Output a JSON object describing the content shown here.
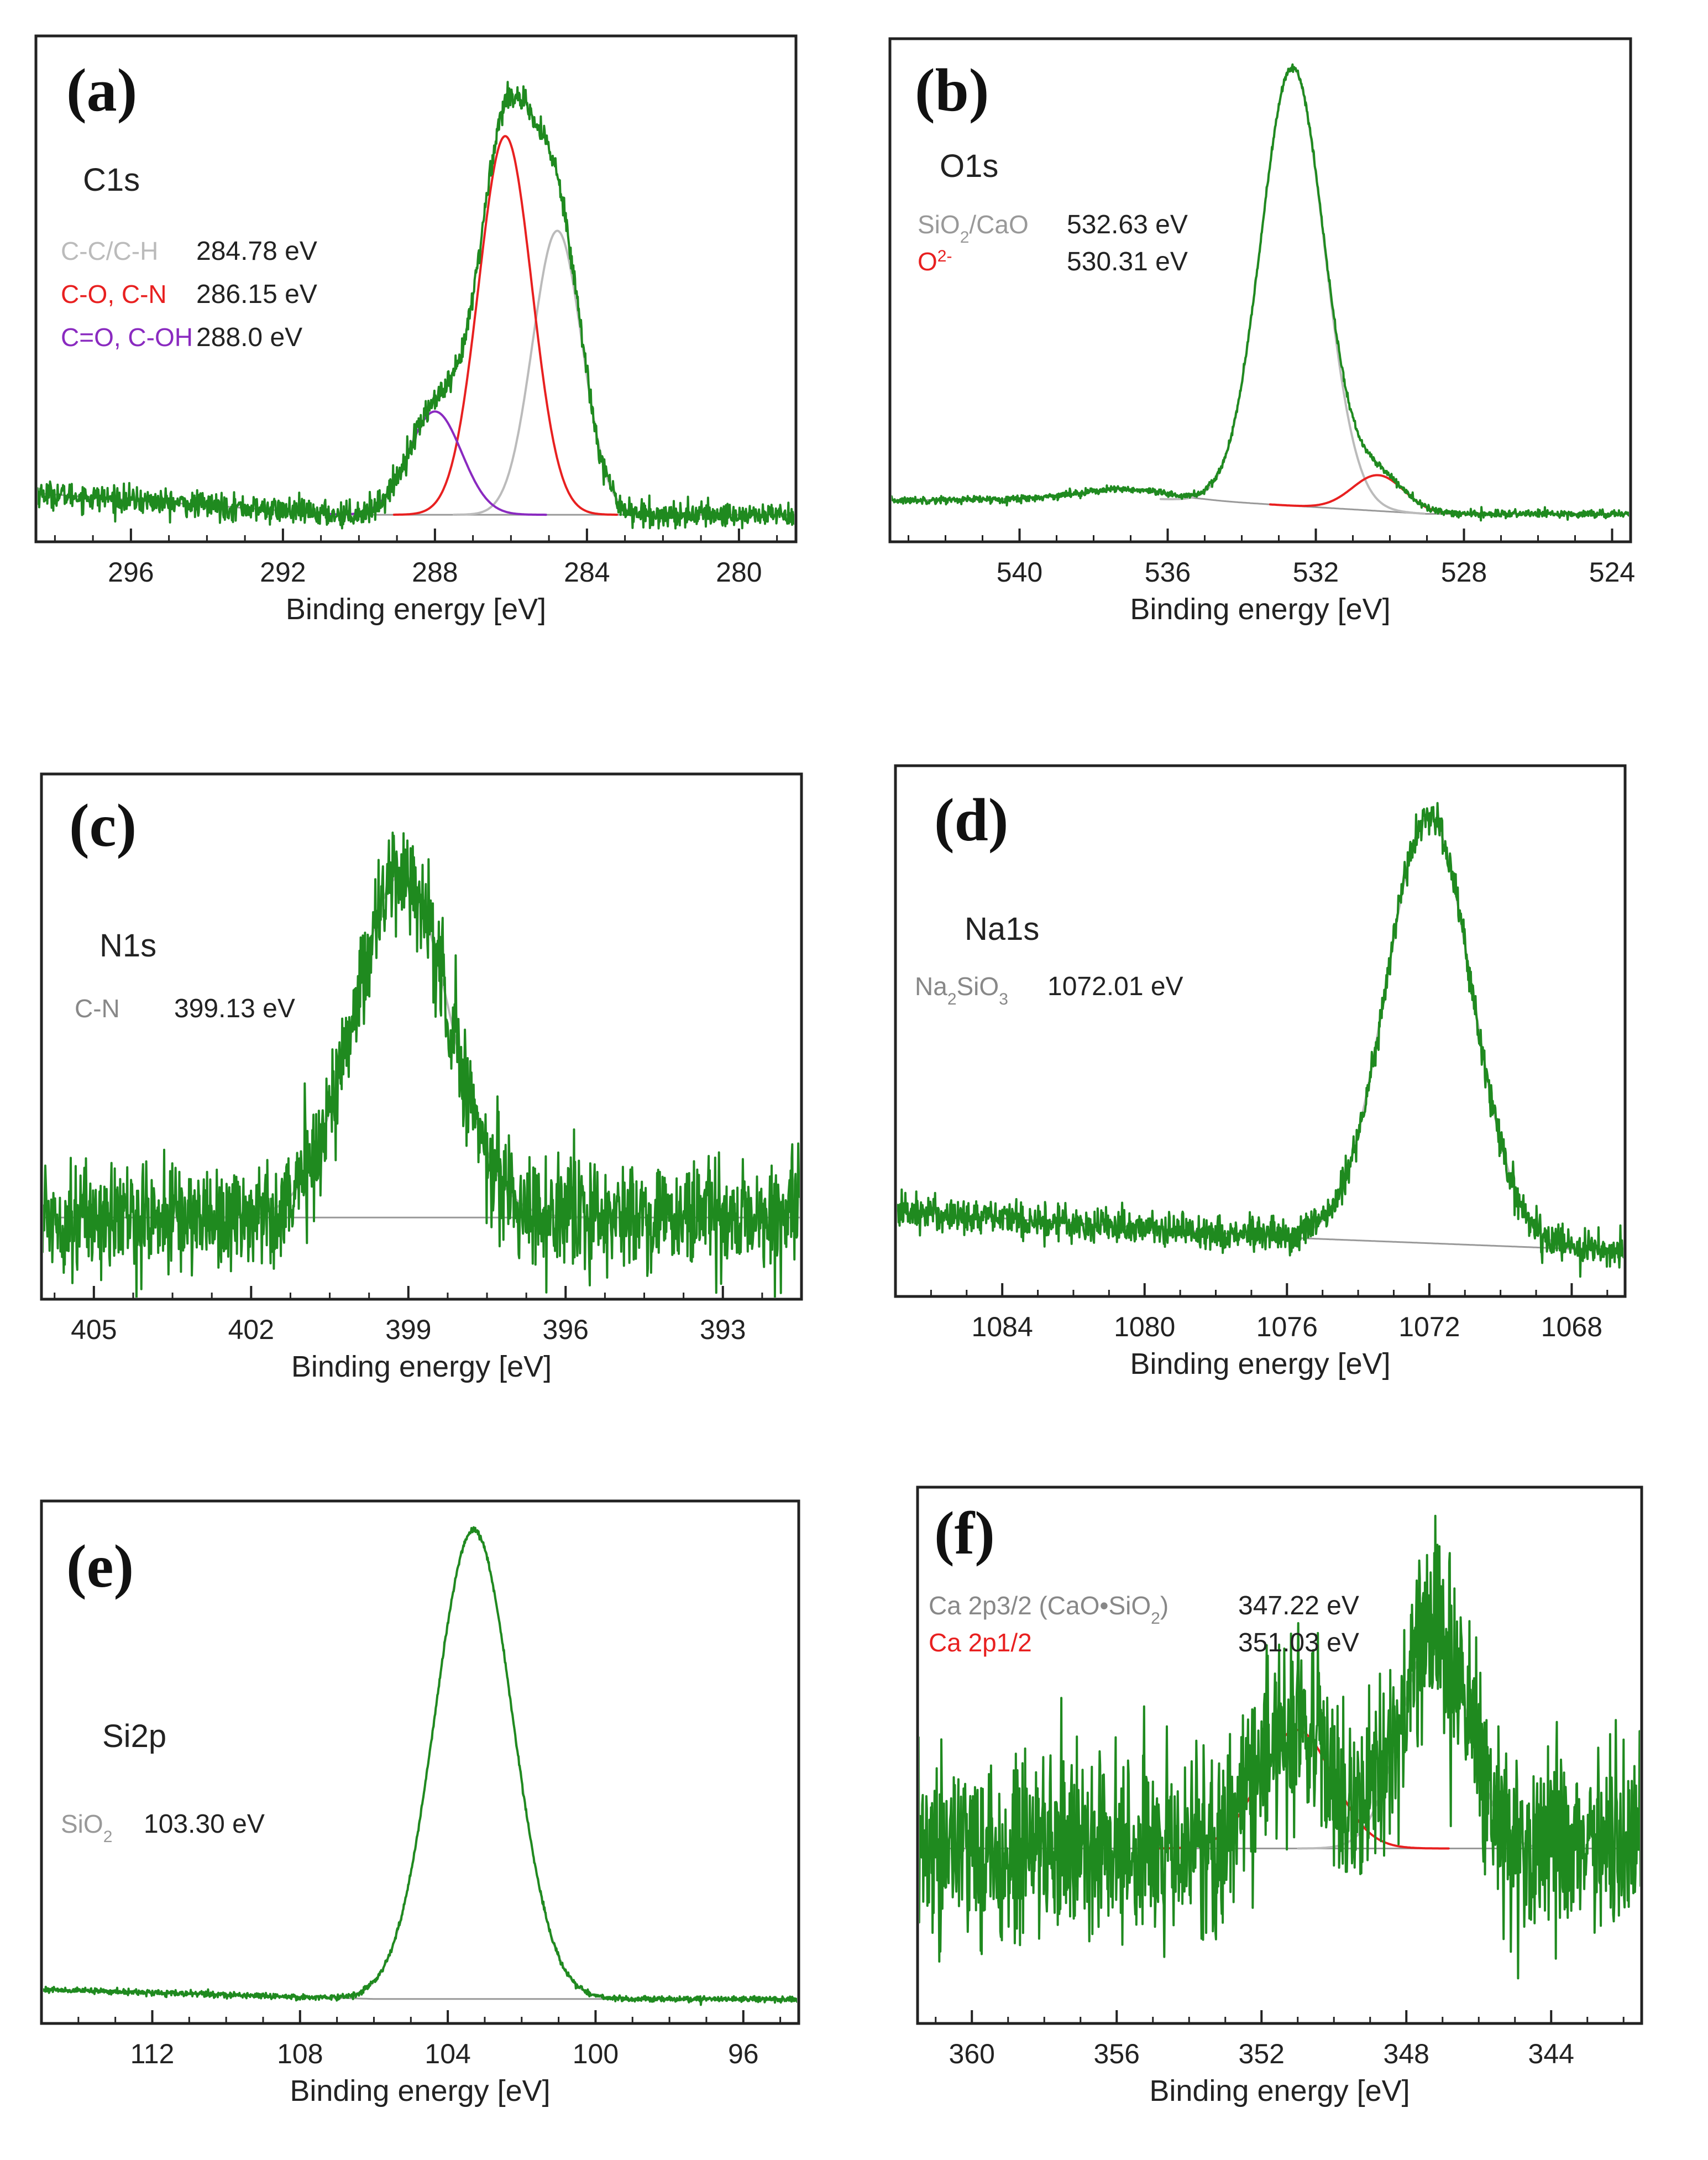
{
  "chart_data": [
    {
      "panel": "(a)",
      "type": "line",
      "core_level": "C1s",
      "xlabel": "Binding energy [eV]",
      "xlim": [
        298.5,
        278.5
      ],
      "xticks": [
        296,
        292,
        288,
        284,
        280
      ],
      "xtick_labels": [
        "296",
        "292",
        "288",
        "284",
        "280"
      ],
      "components": [
        {
          "name": "C-C/C-H",
          "value": "284.78 eV",
          "name_color": "#bbbbbb",
          "center": 284.78,
          "amp": 0.66,
          "sigma": 0.65
        },
        {
          "name": "C-O, C-N",
          "value": "286.15 eV",
          "name_color": "#e82020",
          "center": 286.15,
          "amp": 0.88,
          "sigma": 0.7
        },
        {
          "name": "C=O, C-OH",
          "value": "288.0 eV",
          "name_color": "#8a2ac0",
          "center": 288.0,
          "amp": 0.24,
          "sigma": 0.7
        }
      ],
      "fit_colors": [
        "#bbbbbb",
        "#e82020",
        "#8a2ac0"
      ],
      "baseline": [
        [
          298.5,
          0.05
        ],
        [
          290.5,
          0.0
        ],
        [
          279.0,
          0.0
        ]
      ],
      "noise": 0.015,
      "ylim": [
        -0.05,
        1.1
      ]
    },
    {
      "panel": "(b)",
      "type": "line",
      "core_level": "O1s",
      "xlabel": "Binding energy [eV]",
      "xlim": [
        543.5,
        523.5
      ],
      "xticks": [
        540,
        536,
        532,
        528,
        524
      ],
      "xtick_labels": [
        "540",
        "536",
        "532",
        "528",
        "524"
      ],
      "components": [
        {
          "name_html": "SiO<tspan baseline-shift=\"sub\" font-size=\"30\">2</tspan>/CaO",
          "name": "SiO2/CaO",
          "value": "532.63 eV",
          "name_color": "#999999",
          "center": 532.63,
          "amp": 0.98,
          "sigma": 0.85
        },
        {
          "name_html": "O<tspan baseline-shift=\"super\" font-size=\"30\">2-</tspan>",
          "name": "O2-",
          "value": "530.31 eV",
          "name_color": "#e82020",
          "center": 530.31,
          "amp": 0.08,
          "sigma": 0.7
        }
      ],
      "fit_colors": [
        "#bbbbbb",
        "#e82020"
      ],
      "baseline": [
        [
          543.5,
          0.03
        ],
        [
          537.0,
          0.035
        ],
        [
          535.0,
          0.03
        ],
        [
          529.0,
          0.0
        ],
        [
          523.5,
          0.0
        ]
      ],
      "bump": {
        "center": 537.3,
        "amp": 0.02,
        "sigma": 1.2
      },
      "noise": 0.004,
      "ylim": [
        -0.05,
        1.05
      ]
    },
    {
      "panel": "(c)",
      "type": "line",
      "core_level": "N1s",
      "xlabel": "Binding energy [eV]",
      "xlim": [
        406.0,
        391.5
      ],
      "xticks": [
        405,
        402,
        399,
        396,
        393
      ],
      "xtick_labels": [
        "405",
        "402",
        "399",
        "396",
        "393"
      ],
      "components": [
        {
          "name": "C-N",
          "value": "399.13 eV",
          "name_color": "#888888",
          "center": 399.13,
          "amp": 0.9,
          "sigma": 0.9
        }
      ],
      "fit_colors": [
        "#bbbbbb"
      ],
      "baseline": [
        [
          406.0,
          0.0
        ],
        [
          391.5,
          0.0
        ]
      ],
      "noise": 0.07,
      "ylim": [
        -0.2,
        1.15
      ]
    },
    {
      "panel": "(d)",
      "type": "line",
      "core_level": "Na1s",
      "xlabel": "Binding energy [eV]",
      "xlim": [
        1087.0,
        1066.5
      ],
      "xticks": [
        1084,
        1080,
        1076,
        1072,
        1068
      ],
      "xtick_labels": [
        "1084",
        "1080",
        "1076",
        "1072",
        "1068"
      ],
      "components": [
        {
          "name_html": "Na<tspan baseline-shift=\"sub\" font-size=\"30\">2</tspan>SiO<tspan baseline-shift=\"sub\" font-size=\"30\">3</tspan>",
          "name": "Na2SiO3",
          "value": "1072.01 eV",
          "name_color": "#888888",
          "center": 1072.01,
          "amp": 0.96,
          "sigma": 1.2
        }
      ],
      "fit_colors": [
        "#bbbbbb"
      ],
      "baseline": [
        [
          1087.0,
          0.06
        ],
        [
          1076.0,
          0.0
        ],
        [
          1066.5,
          -0.03
        ]
      ],
      "noise": 0.02,
      "ylim": [
        -0.12,
        1.05
      ]
    },
    {
      "panel": "(e)",
      "type": "line",
      "core_level": "Si2p",
      "xlabel": "Binding energy [eV]",
      "xlim": [
        115.0,
        94.5
      ],
      "xticks": [
        112,
        108,
        104,
        100,
        96
      ],
      "xtick_labels": [
        "112",
        "108",
        "104",
        "100",
        "96"
      ],
      "components": [
        {
          "name_html": "SiO<tspan baseline-shift=\"sub\" font-size=\"30\">2</tspan>",
          "name": "SiO2",
          "value": "103.30 eV",
          "name_color": "#999999",
          "center": 103.3,
          "amp": 0.99,
          "sigma": 1.05
        }
      ],
      "fit_colors": [
        "#bbbbbb"
      ],
      "baseline": [
        [
          115.0,
          0.02
        ],
        [
          106.0,
          0.0
        ],
        [
          94.5,
          0.0
        ]
      ],
      "noise": 0.003,
      "ylim": [
        -0.04,
        1.04
      ]
    },
    {
      "panel": "(f)",
      "type": "line",
      "core_level": "",
      "xlabel": "Binding energy [eV]",
      "xlim": [
        361.5,
        341.5
      ],
      "xticks": [
        360,
        356,
        352,
        348,
        344
      ],
      "xtick_labels": [
        "360",
        "356",
        "352",
        "348",
        "344"
      ],
      "components": [
        {
          "name_html": "Ca 2p3/2 (CaO•SiO<tspan baseline-shift=\"sub\" font-size=\"30\">2</tspan>)",
          "name": "Ca 2p3/2 (CaO•SiO2)",
          "value": "347.22 eV",
          "name_color": "#888888",
          "center": 347.22,
          "amp": 0.64,
          "sigma": 0.9
        },
        {
          "name": "Ca 2p1/2",
          "value": "351.03 eV",
          "name_color": "#e82020",
          "center": 351.03,
          "amp": 0.35,
          "sigma": 1.0
        }
      ],
      "fit_colors": [
        "#bbbbbb",
        "#e82020"
      ],
      "baseline": [
        [
          361.5,
          0.0
        ],
        [
          341.5,
          0.0
        ]
      ],
      "noise": 0.14,
      "ylim": [
        -0.5,
        1.05
      ]
    }
  ],
  "colors": {
    "spectrum": "#1f8a1f",
    "background_fit": "#999999"
  }
}
